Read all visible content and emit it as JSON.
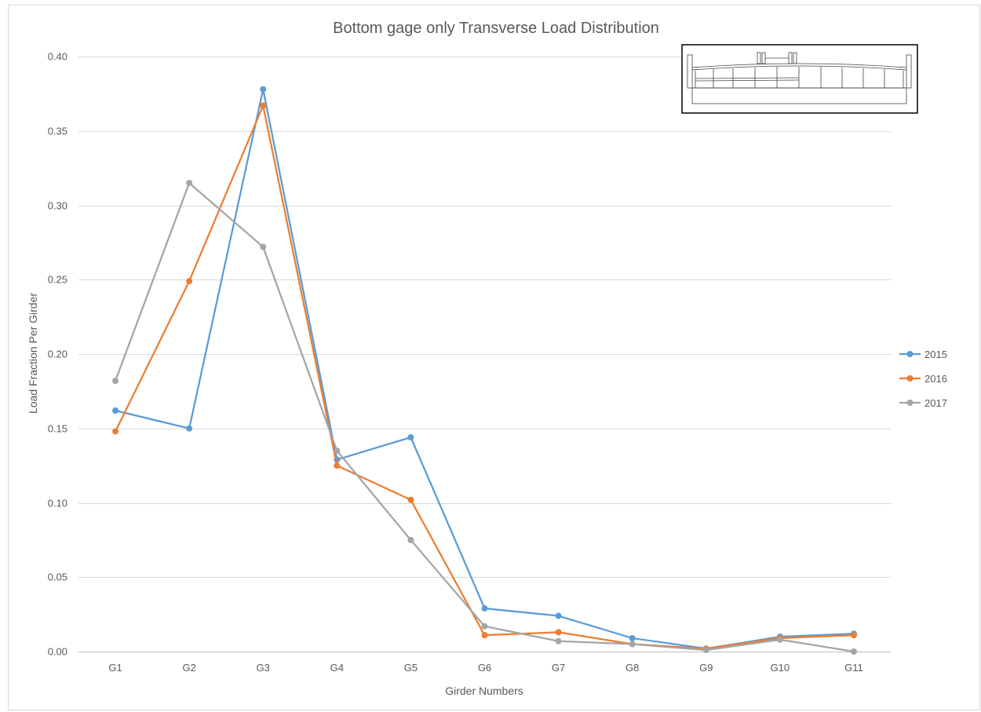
{
  "chart_data": {
    "type": "line",
    "title": "Bottom gage only Transverse Load Distribution",
    "xlabel": "Girder Numbers",
    "ylabel": "Load Fraction Per Girder",
    "categories": [
      "G1",
      "G2",
      "G3",
      "G4",
      "G5",
      "G6",
      "G7",
      "G8",
      "G9",
      "G10",
      "G11"
    ],
    "ylim": [
      0,
      0.4
    ],
    "yticks": [
      "0.00",
      "0.05",
      "0.10",
      "0.15",
      "0.20",
      "0.25",
      "0.30",
      "0.35",
      "0.40"
    ],
    "grid": true,
    "legend_position": "right",
    "series": [
      {
        "name": "2015",
        "color": "#5B9BD5",
        "values": [
          0.162,
          0.15,
          0.378,
          0.129,
          0.144,
          0.029,
          0.024,
          0.009,
          0.002,
          0.01,
          0.012
        ]
      },
      {
        "name": "2016",
        "color": "#ED7D31",
        "values": [
          0.148,
          0.249,
          0.367,
          0.125,
          0.102,
          0.011,
          0.013,
          0.005,
          0.002,
          0.009,
          0.011
        ]
      },
      {
        "name": "2017",
        "color": "#A5A5A5",
        "values": [
          0.182,
          0.315,
          0.272,
          0.135,
          0.075,
          0.017,
          0.007,
          0.005,
          0.001,
          0.008,
          0.0
        ]
      }
    ]
  }
}
